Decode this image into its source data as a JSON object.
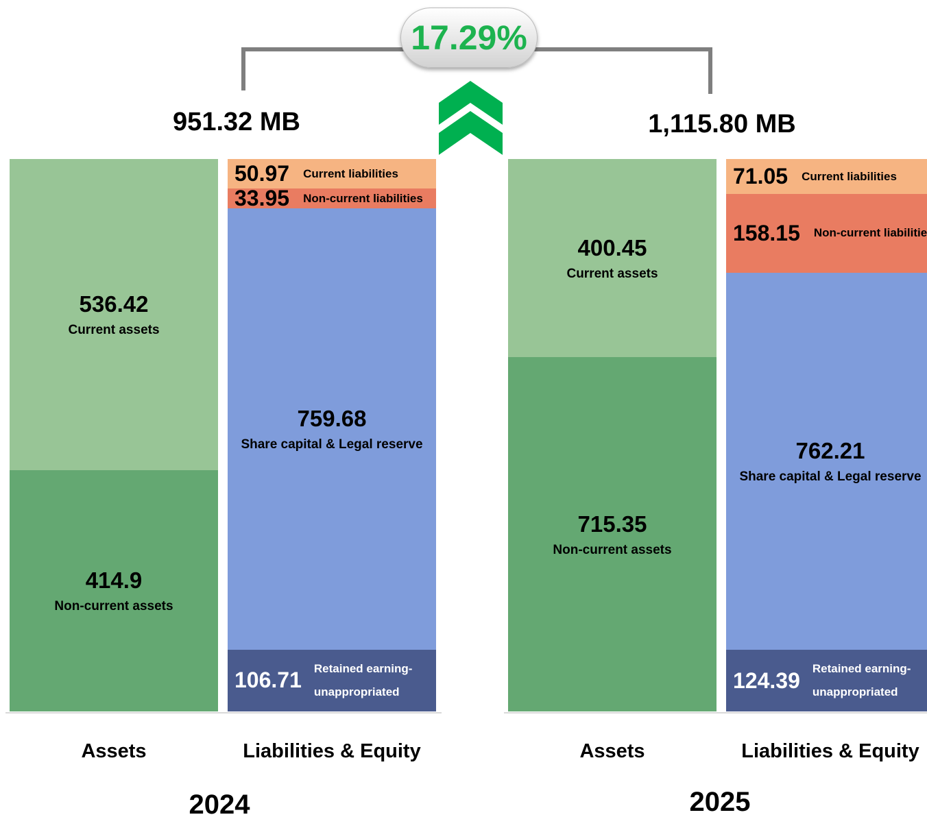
{
  "growth": "17.29%",
  "chart_data": [
    {
      "type": "bar",
      "stacked": true,
      "title": "951.32 MB",
      "year": "2024",
      "categories": [
        "Assets",
        "Liabilities & Equity"
      ],
      "series": [
        {
          "name": "Non-current assets",
          "color": "#64a872",
          "values": [
            414.9,
            null
          ]
        },
        {
          "name": "Current assets",
          "color": "#98c596",
          "values": [
            536.42,
            null
          ]
        },
        {
          "name": "Retained earning-unappropriated",
          "color": "#4a5b8e",
          "values": [
            null,
            106.71
          ]
        },
        {
          "name": "Share capital & Legal reserve",
          "color": "#7f9cdb",
          "values": [
            null,
            759.68
          ]
        },
        {
          "name": "Non-current liabilities",
          "color": "#e97c61",
          "values": [
            null,
            33.95
          ]
        },
        {
          "name": "Current liabilities",
          "color": "#f6b482",
          "values": [
            null,
            50.97
          ]
        }
      ]
    },
    {
      "type": "bar",
      "stacked": true,
      "title": "1,115.80 MB",
      "year": "2025",
      "categories": [
        "Assets",
        "Liabilities & Equity"
      ],
      "series": [
        {
          "name": "Non-current assets",
          "color": "#64a872",
          "values": [
            715.35,
            null
          ]
        },
        {
          "name": "Current assets",
          "color": "#98c596",
          "values": [
            400.45,
            null
          ]
        },
        {
          "name": "Retained earning-unappropriated",
          "color": "#4a5b8e",
          "values": [
            null,
            124.39
          ]
        },
        {
          "name": "Share capital & Legal reserve",
          "color": "#7f9cdb",
          "values": [
            null,
            762.21
          ]
        },
        {
          "name": "Non-current liabilities",
          "color": "#e97c61",
          "values": [
            null,
            158.15
          ]
        },
        {
          "name": "Current liabilities",
          "color": "#f6b482",
          "values": [
            null,
            71.05
          ]
        }
      ]
    }
  ]
}
